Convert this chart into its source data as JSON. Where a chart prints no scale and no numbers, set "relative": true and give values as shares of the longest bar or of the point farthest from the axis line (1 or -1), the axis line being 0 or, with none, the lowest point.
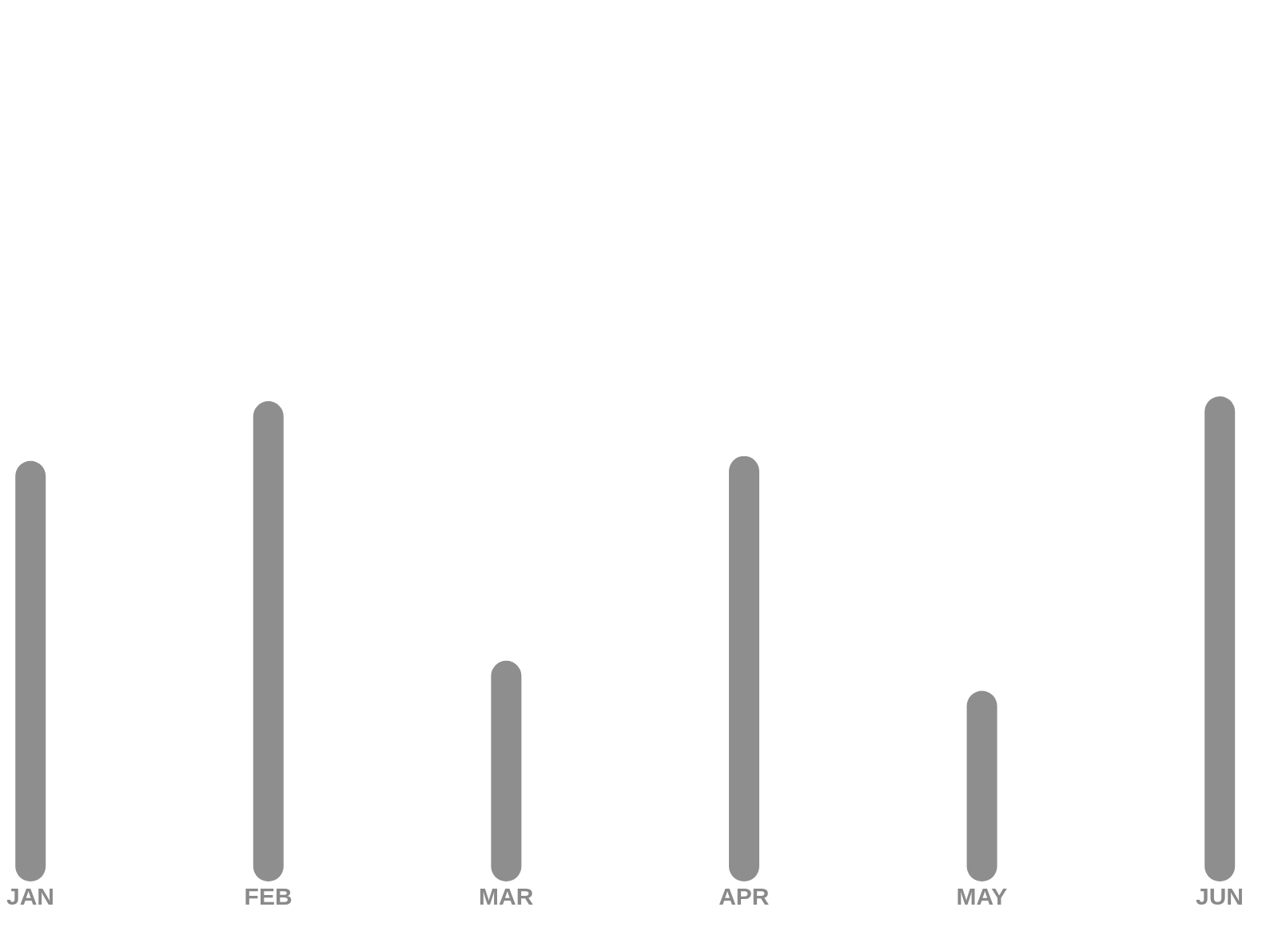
{
  "chart_data": {
    "type": "bar",
    "relative": true,
    "categories": [
      "JAN",
      "FEB",
      "MAR",
      "APR",
      "MAY",
      "JUN"
    ],
    "values": [
      0.867,
      0.99,
      0.455,
      0.877,
      0.393,
      1
    ],
    "color": "#8e8e8e",
    "grid": false
  }
}
